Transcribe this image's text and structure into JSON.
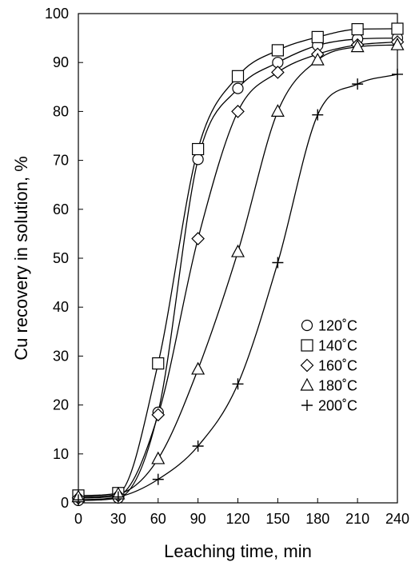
{
  "chart_data": {
    "type": "line",
    "title": "",
    "xlabel": "Leaching time, min",
    "ylabel": "Cu recovery in solution, %",
    "xlim": [
      0,
      240
    ],
    "ylim": [
      0,
      100
    ],
    "xticks": [
      0,
      30,
      60,
      90,
      120,
      150,
      180,
      210,
      240
    ],
    "yticks": [
      0,
      10,
      20,
      30,
      40,
      50,
      60,
      70,
      80,
      90,
      100
    ],
    "grid": false,
    "legend_position": "bottom-right",
    "series": [
      {
        "name": "120˚C",
        "marker": "circle",
        "color": "#000000",
        "x": [
          0,
          30,
          60,
          90,
          120,
          150,
          180,
          210,
          240
        ],
        "y": [
          0.5,
          1.0,
          18.5,
          70.2,
          84.7,
          90.0,
          93.5,
          94.8,
          95.0
        ]
      },
      {
        "name": "140˚C",
        "marker": "square",
        "color": "#000000",
        "x": [
          0,
          30,
          60,
          90,
          120,
          150,
          180,
          210,
          240
        ],
        "y": [
          1.5,
          2.0,
          28.5,
          72.3,
          87.2,
          92.5,
          95.2,
          96.8,
          96.9
        ]
      },
      {
        "name": "160˚C",
        "marker": "diamond",
        "color": "#000000",
        "x": [
          0,
          30,
          60,
          90,
          120,
          150,
          180,
          210,
          240
        ],
        "y": [
          1.0,
          1.5,
          18.0,
          54.0,
          80.0,
          88.0,
          91.7,
          93.6,
          94.2
        ]
      },
      {
        "name": "180˚C",
        "marker": "triangle",
        "color": "#000000",
        "x": [
          0,
          30,
          60,
          90,
          120,
          150,
          180,
          210,
          240
        ],
        "y": [
          1.2,
          1.8,
          9.0,
          27.3,
          51.3,
          80.0,
          90.5,
          93.2,
          93.6
        ]
      },
      {
        "name": "200˚C",
        "marker": "plus",
        "color": "#000000",
        "x": [
          0,
          30,
          60,
          90,
          120,
          150,
          180,
          210,
          240
        ],
        "y": [
          0.6,
          1.2,
          4.8,
          11.6,
          24.3,
          49.1,
          79.3,
          85.6,
          87.6
        ]
      }
    ]
  }
}
